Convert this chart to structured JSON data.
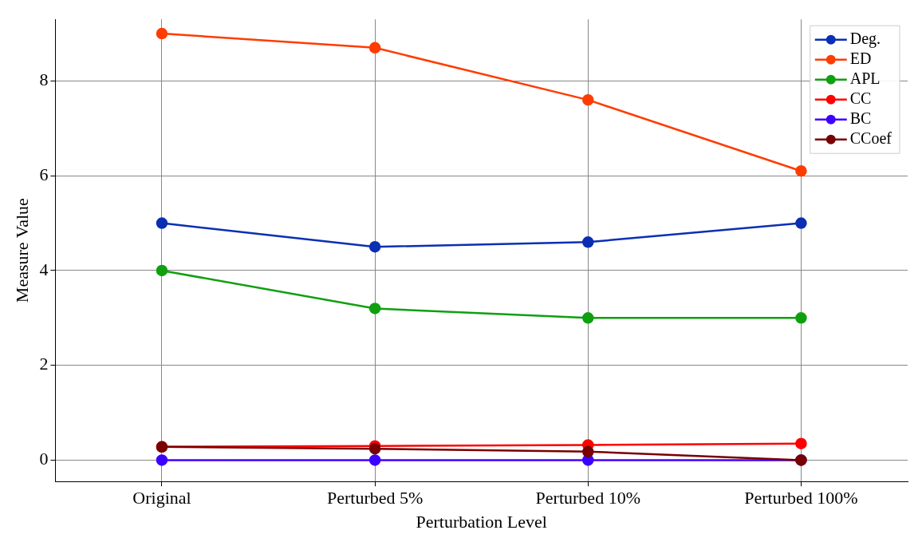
{
  "chart_data": {
    "type": "line",
    "xlabel": "Perturbation Level",
    "ylabel": "Measure Value",
    "categories": [
      "Original",
      "Perturbed 5%",
      "Perturbed 10%",
      "Perturbed 100%"
    ],
    "series": [
      {
        "name": "Deg.",
        "color": "#0a2fb4",
        "values": [
          5.0,
          4.5,
          4.6,
          5.0
        ]
      },
      {
        "name": "ED",
        "color": "#ff3c00",
        "values": [
          9.0,
          8.7,
          7.6,
          6.1
        ]
      },
      {
        "name": "APL",
        "color": "#0fa00f",
        "values": [
          4.0,
          3.2,
          3.0,
          3.0
        ]
      },
      {
        "name": "CC",
        "color": "#ff0000",
        "values": [
          0.28,
          0.3,
          0.32,
          0.35
        ]
      },
      {
        "name": "BC",
        "color": "#3c00ff",
        "values": [
          0.0,
          0.0,
          0.0,
          0.0
        ]
      },
      {
        "name": "CCoef",
        "color": "#780000",
        "values": [
          0.28,
          0.24,
          0.18,
          0.0
        ]
      }
    ],
    "ylim": [
      -0.45,
      9.3
    ],
    "yticks": [
      0,
      2,
      4,
      6,
      8
    ],
    "grid": true,
    "legend": "top right",
    "marker": "circle",
    "line_style": "solid"
  }
}
